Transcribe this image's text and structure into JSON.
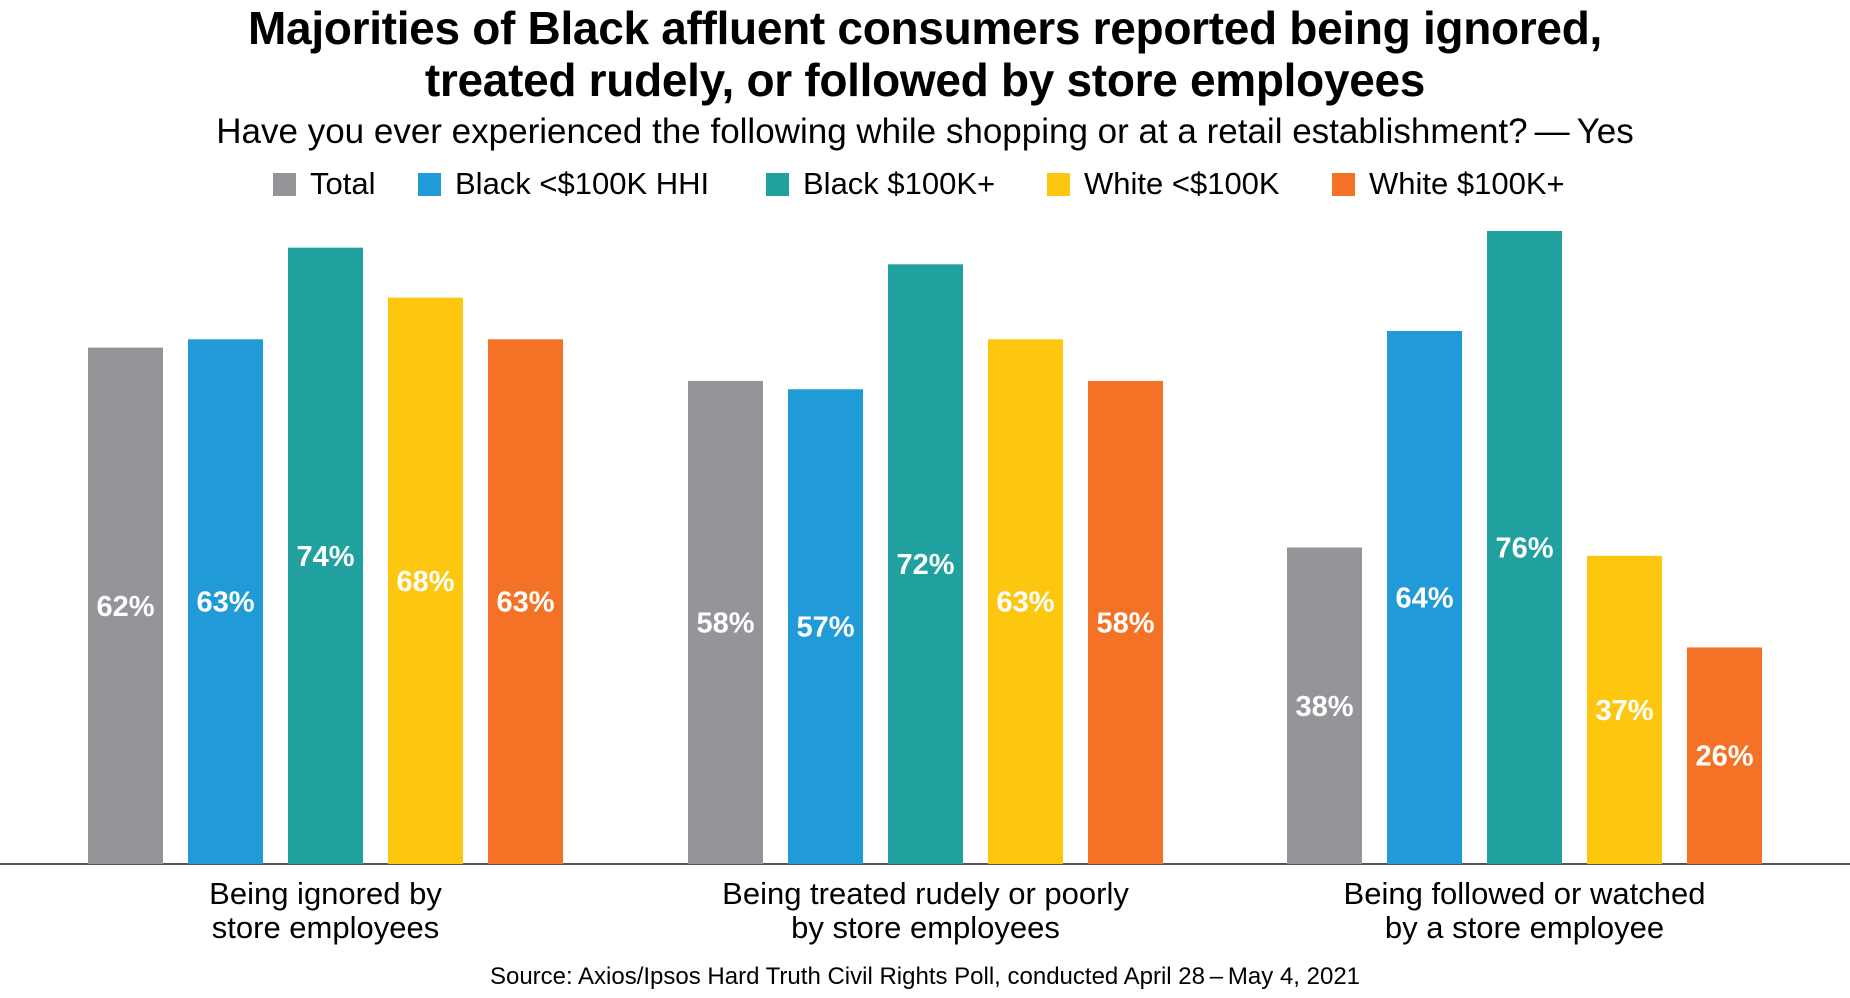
{
  "chart_data": {
    "type": "bar",
    "title_lines": [
      "Majorities of Black affluent consumers reported being ignored,",
      "treated rudely, or followed by store employees"
    ],
    "subtitle": "Have you ever experienced the following while shopping or at a retail establishment? — Yes",
    "categories": [
      [
        "Being ignored by",
        "store employees"
      ],
      [
        "Being treated rudely or poorly",
        "by store employees"
      ],
      [
        "Being followed or watched",
        "by a store employee"
      ]
    ],
    "series": [
      {
        "name": "Total",
        "color": "#939598",
        "values": [
          62,
          58,
          38
        ]
      },
      {
        "name": "Black <$100K HHI",
        "color": "#219bd7",
        "values": [
          63,
          57,
          64
        ]
      },
      {
        "name": "Black $100K+",
        "color": "#20a09f",
        "values": [
          74,
          72,
          76
        ]
      },
      {
        "name": "White <$100K",
        "color": "#fdc70f",
        "values": [
          68,
          63,
          37
        ]
      },
      {
        "name": "White $100K+",
        "color": "#f37225",
        "values": [
          63,
          58,
          26
        ]
      }
    ],
    "value_suffix": "%",
    "ylim": [
      0,
      76
    ],
    "grid": false,
    "legend_position": "top",
    "source": "Source: Axios/Ipsos Hard Truth Civil Rights Poll, conducted April 28 – May 4, 2021"
  }
}
